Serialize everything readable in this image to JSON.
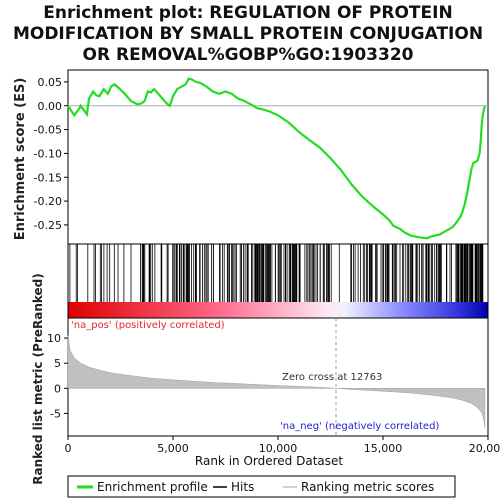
{
  "title_lines": [
    "Enrichment plot: REGULATION OF PROTEIN",
    "MODIFICATION BY SMALL PROTEIN CONJUGATION",
    "OR REMOVAL%GOBP%GO:1903320"
  ],
  "colors": {
    "es_line": "#22dd22",
    "hits": "#000000",
    "metric_fill": "#c0c0c0",
    "pos_label": "#ee2222",
    "neg_label": "#2222cc",
    "zero_line": "#aaaaaa"
  },
  "labels": {
    "pos": "'na_pos' (positively correlated)",
    "neg": "'na_neg' (negatively correlated)",
    "zero_cross": "Zero cross at 12763"
  },
  "legend": {
    "enrichment_profile": "Enrichment profile",
    "hits": "Hits",
    "ranking_metric_scores": "Ranking metric scores"
  },
  "chart_data": [
    {
      "type": "line",
      "name": "enrichment_profile",
      "ylabel": "Enrichment score (ES)",
      "xlim": [
        0,
        20000
      ],
      "ylim": [
        -0.29,
        0.075
      ],
      "yticks": [
        0.05,
        0.0,
        -0.05,
        -0.1,
        -0.15,
        -0.2,
        -0.25
      ],
      "ytick_labels": [
        "0.05",
        "0.00",
        "-0.05",
        "-0.10",
        "-0.15",
        "-0.20",
        "-0.25"
      ],
      "grid": false,
      "x": [
        0,
        300,
        550,
        600,
        900,
        1000,
        1200,
        1350,
        1500,
        1700,
        1900,
        2050,
        2200,
        2400,
        2700,
        3000,
        3300,
        3500,
        3650,
        3800,
        3950,
        4100,
        4300,
        4500,
        4700,
        4850,
        5000,
        5200,
        5400,
        5600,
        5750,
        5900,
        6100,
        6300,
        6600,
        6900,
        7200,
        7500,
        7800,
        8100,
        8400,
        8700,
        9000,
        9300,
        9600,
        10000,
        10500,
        11000,
        11500,
        12000,
        12500,
        13000,
        13500,
        14000,
        14500,
        15000,
        15300,
        15500,
        15800,
        16000,
        16300,
        16600,
        16900,
        17100,
        17300,
        17500,
        17700,
        17900,
        18100,
        18300,
        18500,
        18700,
        18800,
        18900,
        19000,
        19100,
        19200,
        19300,
        19400,
        19500,
        19600,
        19650,
        19700,
        19750,
        19800,
        19850
      ],
      "y": [
        0.0,
        -0.02,
        -0.005,
        0.0,
        -0.018,
        0.015,
        0.03,
        0.022,
        0.02,
        0.035,
        0.025,
        0.04,
        0.045,
        0.038,
        0.025,
        0.01,
        0.003,
        0.005,
        0.01,
        0.03,
        0.028,
        0.035,
        0.025,
        0.015,
        0.005,
        0.0,
        0.02,
        0.035,
        0.04,
        0.045,
        0.057,
        0.055,
        0.05,
        0.048,
        0.04,
        0.03,
        0.025,
        0.03,
        0.025,
        0.015,
        0.01,
        0.003,
        -0.005,
        -0.008,
        -0.012,
        -0.02,
        -0.035,
        -0.055,
        -0.072,
        -0.088,
        -0.11,
        -0.135,
        -0.165,
        -0.19,
        -0.21,
        -0.228,
        -0.24,
        -0.252,
        -0.258,
        -0.265,
        -0.272,
        -0.275,
        -0.277,
        -0.278,
        -0.274,
        -0.272,
        -0.27,
        -0.265,
        -0.26,
        -0.255,
        -0.245,
        -0.232,
        -0.22,
        -0.205,
        -0.185,
        -0.16,
        -0.135,
        -0.12,
        -0.118,
        -0.115,
        -0.1,
        -0.075,
        -0.04,
        -0.02,
        -0.01,
        0.0
      ]
    },
    {
      "type": "area",
      "name": "ranked_list_metric",
      "xlabel": "Rank in Ordered Dataset",
      "ylabel": "Ranked list metric (PreRanked)",
      "xlim": [
        0,
        20000
      ],
      "ylim": [
        -9.5,
        14
      ],
      "yticks": [
        10,
        5,
        0,
        -5
      ],
      "ytick_labels": [
        "10",
        "5",
        "0",
        "-5"
      ],
      "xticks": [
        0,
        5000,
        10000,
        15000,
        20000
      ],
      "xtick_labels": [
        "0",
        "5,000",
        "10,000",
        "15,000",
        "20,000"
      ],
      "x": [
        0,
        100,
        300,
        600,
        1000,
        1500,
        2000,
        3000,
        4000,
        5000,
        6000,
        7000,
        8000,
        9000,
        10000,
        11000,
        12000,
        12763,
        13500,
        14500,
        15500,
        16500,
        17500,
        18300,
        18800,
        19200,
        19500,
        19700,
        19800,
        19850
      ],
      "y": [
        10.5,
        7.5,
        6.0,
        5.0,
        4.2,
        3.6,
        3.1,
        2.5,
        2.0,
        1.7,
        1.4,
        1.15,
        0.95,
        0.75,
        0.55,
        0.38,
        0.2,
        0.0,
        -0.2,
        -0.45,
        -0.7,
        -1.0,
        -1.45,
        -1.9,
        -2.4,
        -3.0,
        -3.8,
        -4.8,
        -6.2,
        -8.0
      ]
    }
  ]
}
